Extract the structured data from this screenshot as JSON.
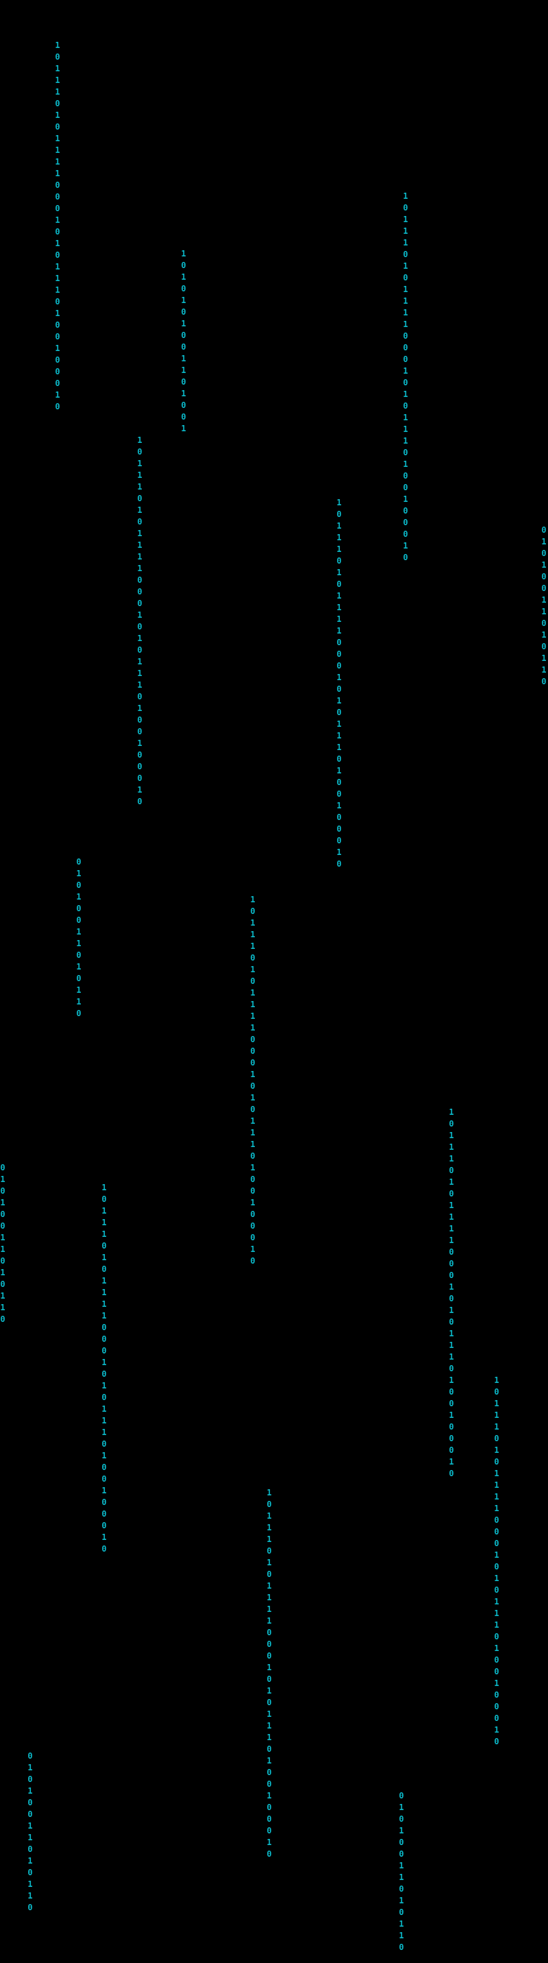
{
  "columns": [
    "10111010111100010101110100100010",
    "1010101001101001",
    "10111010111100010101110100100010",
    "10111010111100010101110100100010",
    "01010011010110",
    "10111010111100010101110100100010",
    "01010011010110",
    "10111010111100010101110100100010",
    "01010011010110",
    "10111010111100010101110100100010",
    "10111010111100010101110100100010",
    "10111010111100010101110100100010",
    "10111010111100010101110100100010",
    "01010011010110",
    "01010011010110"
  ]
}
